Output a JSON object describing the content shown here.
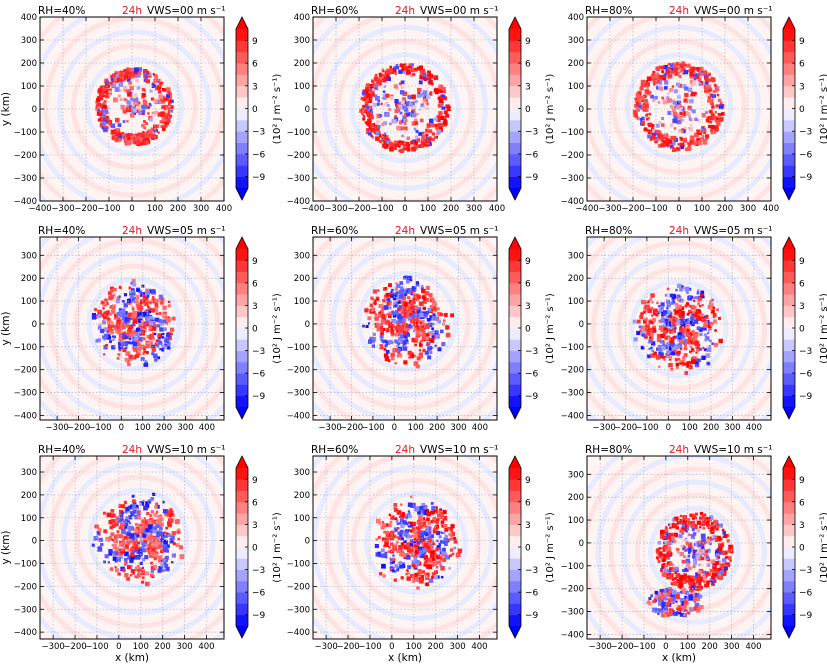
{
  "chart_data": {
    "type": "heatmap",
    "rows": 3,
    "cols": 3,
    "colorbar": {
      "label": "(10² J m⁻² s⁻¹)",
      "ticks": [
        "9",
        "6",
        "3",
        "0",
        "−3",
        "−6",
        "−9"
      ],
      "tick_values": [
        9,
        6,
        3,
        0,
        -3,
        -6,
        -9
      ],
      "range": [
        -10.5,
        10.5
      ],
      "levels": 14,
      "colors": {
        "positive": "#ff0000",
        "zero": "#ffffff",
        "negative": "#0000ff"
      }
    },
    "axis_labels": {
      "x": "x (km)",
      "y": "y (km)"
    },
    "panels": [
      {
        "rh": "RH=40%",
        "time": "24h",
        "vws": "VWS=00 m s⁻¹",
        "xlim": [
          -400,
          400
        ],
        "ylim": [
          -400,
          400
        ],
        "xticks": [
          -400,
          -300,
          -200,
          -100,
          0,
          100,
          200,
          300,
          400
        ],
        "xticklabels": [
          "−400",
          "−300",
          "−200",
          "−100",
          "0",
          "100",
          "200",
          "300",
          "400"
        ],
        "yticks": [
          -400,
          -300,
          -200,
          -100,
          0,
          100,
          200,
          300,
          400
        ],
        "yticklabels": [
          "−400",
          "−300",
          "−200",
          "−100",
          "0",
          "100",
          "200",
          "300",
          "400"
        ],
        "show_ylabel": true,
        "show_xlabel": false,
        "features": [
          {
            "kind": "ring",
            "cx": 10,
            "cy": 10,
            "r": 145,
            "w": 30,
            "amp": 9,
            "seed": 11
          }
        ]
      },
      {
        "rh": "RH=60%",
        "time": "24h",
        "vws": "VWS=00 m s⁻¹",
        "xlim": [
          -400,
          400
        ],
        "ylim": [
          -400,
          400
        ],
        "xticks": [
          -400,
          -300,
          -200,
          -100,
          0,
          100,
          200,
          300,
          400
        ],
        "xticklabels": [
          "−400",
          "−300",
          "−200",
          "−100",
          "0",
          "100",
          "200",
          "300",
          "400"
        ],
        "yticks": [
          -400,
          -300,
          -200,
          -100,
          0,
          100,
          200,
          300,
          400
        ],
        "yticklabels": [
          "−400",
          "−300",
          "−200",
          "−100",
          "0",
          "100",
          "200",
          "300",
          "400"
        ],
        "show_ylabel": false,
        "show_xlabel": false,
        "features": [
          {
            "kind": "ring",
            "cx": 0,
            "cy": 5,
            "r": 170,
            "w": 30,
            "amp": 10,
            "seed": 23
          }
        ]
      },
      {
        "rh": "RH=80%",
        "time": "24h",
        "vws": "VWS=00 m s⁻¹",
        "xlim": [
          -400,
          400
        ],
        "ylim": [
          -400,
          400
        ],
        "xticks": [
          -400,
          -300,
          -200,
          -100,
          0,
          100,
          200,
          300,
          400
        ],
        "xticklabels": [
          "−400",
          "−300",
          "−200",
          "−100",
          "0",
          "100",
          "200",
          "300",
          "400"
        ],
        "yticks": [
          -400,
          -300,
          -200,
          -100,
          0,
          100,
          200,
          300,
          400
        ],
        "yticklabels": [
          "−400",
          "−300",
          "−200",
          "−100",
          "0",
          "100",
          "200",
          "300",
          "400"
        ],
        "show_ylabel": false,
        "show_xlabel": false,
        "features": [
          {
            "kind": "ring",
            "cx": 0,
            "cy": 10,
            "r": 165,
            "w": 40,
            "amp": 9,
            "seed": 37
          }
        ]
      },
      {
        "rh": "RH=40%",
        "time": "24h",
        "vws": "VWS=05 m s⁻¹",
        "xlim": [
          -380,
          480
        ],
        "ylim": [
          -420,
          380
        ],
        "xticks": [
          -300,
          -200,
          -100,
          0,
          100,
          200,
          300,
          400
        ],
        "xticklabels": [
          "−300",
          "−200",
          "−100",
          "0",
          "100",
          "200",
          "300",
          "400"
        ],
        "yticks": [
          -400,
          -300,
          -200,
          -100,
          0,
          100,
          200,
          300
        ],
        "yticklabels": [
          "−400",
          "−300",
          "−200",
          "−100",
          "0",
          "100",
          "200",
          "300"
        ],
        "show_ylabel": true,
        "show_xlabel": false,
        "features": [
          {
            "kind": "spiral",
            "cx": 60,
            "cy": 0,
            "r": 150,
            "w": 40,
            "amp": 9,
            "seed": 41,
            "dx": 40
          }
        ]
      },
      {
        "rh": "RH=60%",
        "time": "24h",
        "vws": "VWS=05 m s⁻¹",
        "xlim": [
          -380,
          480
        ],
        "ylim": [
          -420,
          380
        ],
        "xticks": [
          -300,
          -200,
          -100,
          0,
          100,
          200,
          300,
          400
        ],
        "xticklabels": [
          "−300",
          "−200",
          "−100",
          "0",
          "100",
          "200",
          "300",
          "400"
        ],
        "yticks": [
          -400,
          -300,
          -200,
          -100,
          0,
          100,
          200,
          300
        ],
        "yticklabels": [
          "−400",
          "−300",
          "−200",
          "−100",
          "0",
          "100",
          "200",
          "300"
        ],
        "show_ylabel": false,
        "show_xlabel": false,
        "features": [
          {
            "kind": "spiral",
            "cx": 60,
            "cy": 10,
            "r": 165,
            "w": 40,
            "amp": 10,
            "seed": 53,
            "dx": 30
          }
        ]
      },
      {
        "rh": "RH=80%",
        "time": "24h",
        "vws": "VWS=05 m s⁻¹",
        "xlim": [
          -380,
          480
        ],
        "ylim": [
          -420,
          380
        ],
        "xticks": [
          -300,
          -200,
          -100,
          0,
          100,
          200,
          300,
          400
        ],
        "xticklabels": [
          "−300",
          "−200",
          "−100",
          "0",
          "100",
          "200",
          "300",
          "400"
        ],
        "yticks": [
          -400,
          -300,
          -200,
          -100,
          0,
          100,
          200,
          300
        ],
        "yticklabels": [
          "−400",
          "−300",
          "−200",
          "−100",
          "0",
          "100",
          "200",
          "300"
        ],
        "show_ylabel": false,
        "show_xlabel": false,
        "features": [
          {
            "kind": "spiral",
            "cx": 50,
            "cy": -20,
            "r": 160,
            "w": 45,
            "amp": 10,
            "seed": 67,
            "dx": -30
          }
        ]
      },
      {
        "rh": "RH=40%",
        "time": "24h",
        "vws": "VWS=10 m s⁻¹",
        "xlim": [
          -360,
          480
        ],
        "ylim": [
          -430,
          370
        ],
        "xticks": [
          -300,
          -200,
          -100,
          0,
          100,
          200,
          300,
          400
        ],
        "xticklabels": [
          "−300",
          "−200",
          "−100",
          "0",
          "100",
          "200",
          "300",
          "400"
        ],
        "yticks": [
          -400,
          -300,
          -200,
          -100,
          0,
          100,
          200,
          300
        ],
        "yticklabels": [
          "−400",
          "−300",
          "−200",
          "−100",
          "0",
          "100",
          "200",
          "300"
        ],
        "show_ylabel": true,
        "show_xlabel": true,
        "features": [
          {
            "kind": "spiral",
            "cx": 90,
            "cy": 10,
            "r": 160,
            "w": 45,
            "amp": 9,
            "seed": 71,
            "dx": 60
          }
        ]
      },
      {
        "rh": "RH=60%",
        "time": "24h",
        "vws": "VWS=10 m s⁻¹",
        "xlim": [
          -360,
          480
        ],
        "ylim": [
          -430,
          370
        ],
        "xticks": [
          -300,
          -200,
          -100,
          0,
          100,
          200,
          300,
          400
        ],
        "xticklabels": [
          "−300",
          "−200",
          "−100",
          "0",
          "100",
          "200",
          "300",
          "400"
        ],
        "yticks": [
          -400,
          -300,
          -200,
          -100,
          0,
          100,
          200,
          300
        ],
        "yticklabels": [
          "−400",
          "−300",
          "−200",
          "−100",
          "0",
          "100",
          "200",
          "300"
        ],
        "show_ylabel": false,
        "show_xlabel": true,
        "features": [
          {
            "kind": "spiral",
            "cx": 110,
            "cy": -10,
            "r": 165,
            "w": 45,
            "amp": 10,
            "seed": 83,
            "dx": 60
          }
        ]
      },
      {
        "rh": "RH=80%",
        "time": "24h",
        "vws": "VWS=10 m s⁻¹",
        "xlim": [
          -360,
          480
        ],
        "ylim": [
          -420,
          380
        ],
        "xticks": [
          -300,
          -200,
          -100,
          0,
          100,
          200,
          300,
          400
        ],
        "xticklabels": [
          "−300",
          "−200",
          "−100",
          "0",
          "100",
          "200",
          "300",
          "400"
        ],
        "yticks": [
          -400,
          -300,
          -200,
          -100,
          0,
          100,
          200,
          300
        ],
        "yticklabels": [
          "−400",
          "−300",
          "−200",
          "−100",
          "0",
          "100",
          "200",
          "300"
        ],
        "show_ylabel": false,
        "show_xlabel": true,
        "features": [
          {
            "kind": "ring",
            "cx": 130,
            "cy": -40,
            "r": 140,
            "w": 45,
            "amp": 10,
            "seed": 97
          },
          {
            "kind": "blob",
            "cx": 40,
            "cy": -260,
            "r": 110,
            "w": 40,
            "amp": 8,
            "seed": 101
          }
        ]
      }
    ]
  }
}
